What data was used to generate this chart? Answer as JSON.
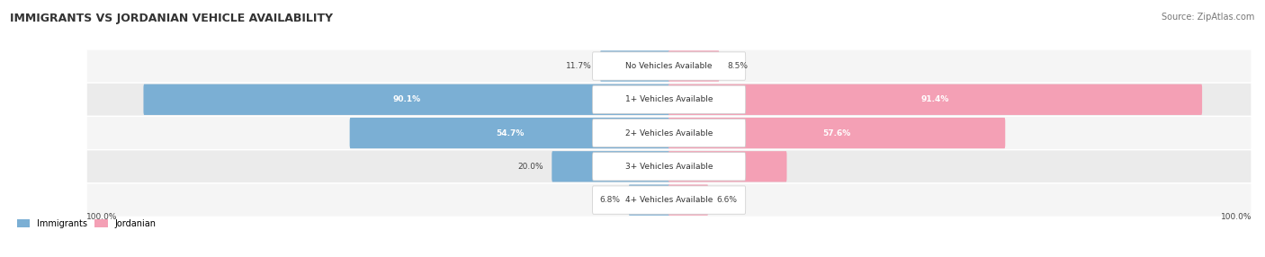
{
  "title": "IMMIGRANTS VS JORDANIAN VEHICLE AVAILABILITY",
  "source": "Source: ZipAtlas.com",
  "categories": [
    "No Vehicles Available",
    "1+ Vehicles Available",
    "2+ Vehicles Available",
    "3+ Vehicles Available",
    "4+ Vehicles Available"
  ],
  "immigrants": [
    11.7,
    90.1,
    54.7,
    20.0,
    6.8
  ],
  "jordanian": [
    8.5,
    91.4,
    57.6,
    20.1,
    6.6
  ],
  "immigrant_color": "#7bafd4",
  "jordanian_color": "#f4a0b5",
  "title_color": "#333333",
  "source_color": "#777777",
  "label_color": "#444444",
  "legend_immigrant": "Immigrants",
  "legend_jordanian": "Jordanian",
  "figsize": [
    14.06,
    2.86
  ],
  "dpi": 100,
  "bg_light": "#f5f5f5",
  "bg_dark": "#ebebeb",
  "row_edge": "#ffffff"
}
